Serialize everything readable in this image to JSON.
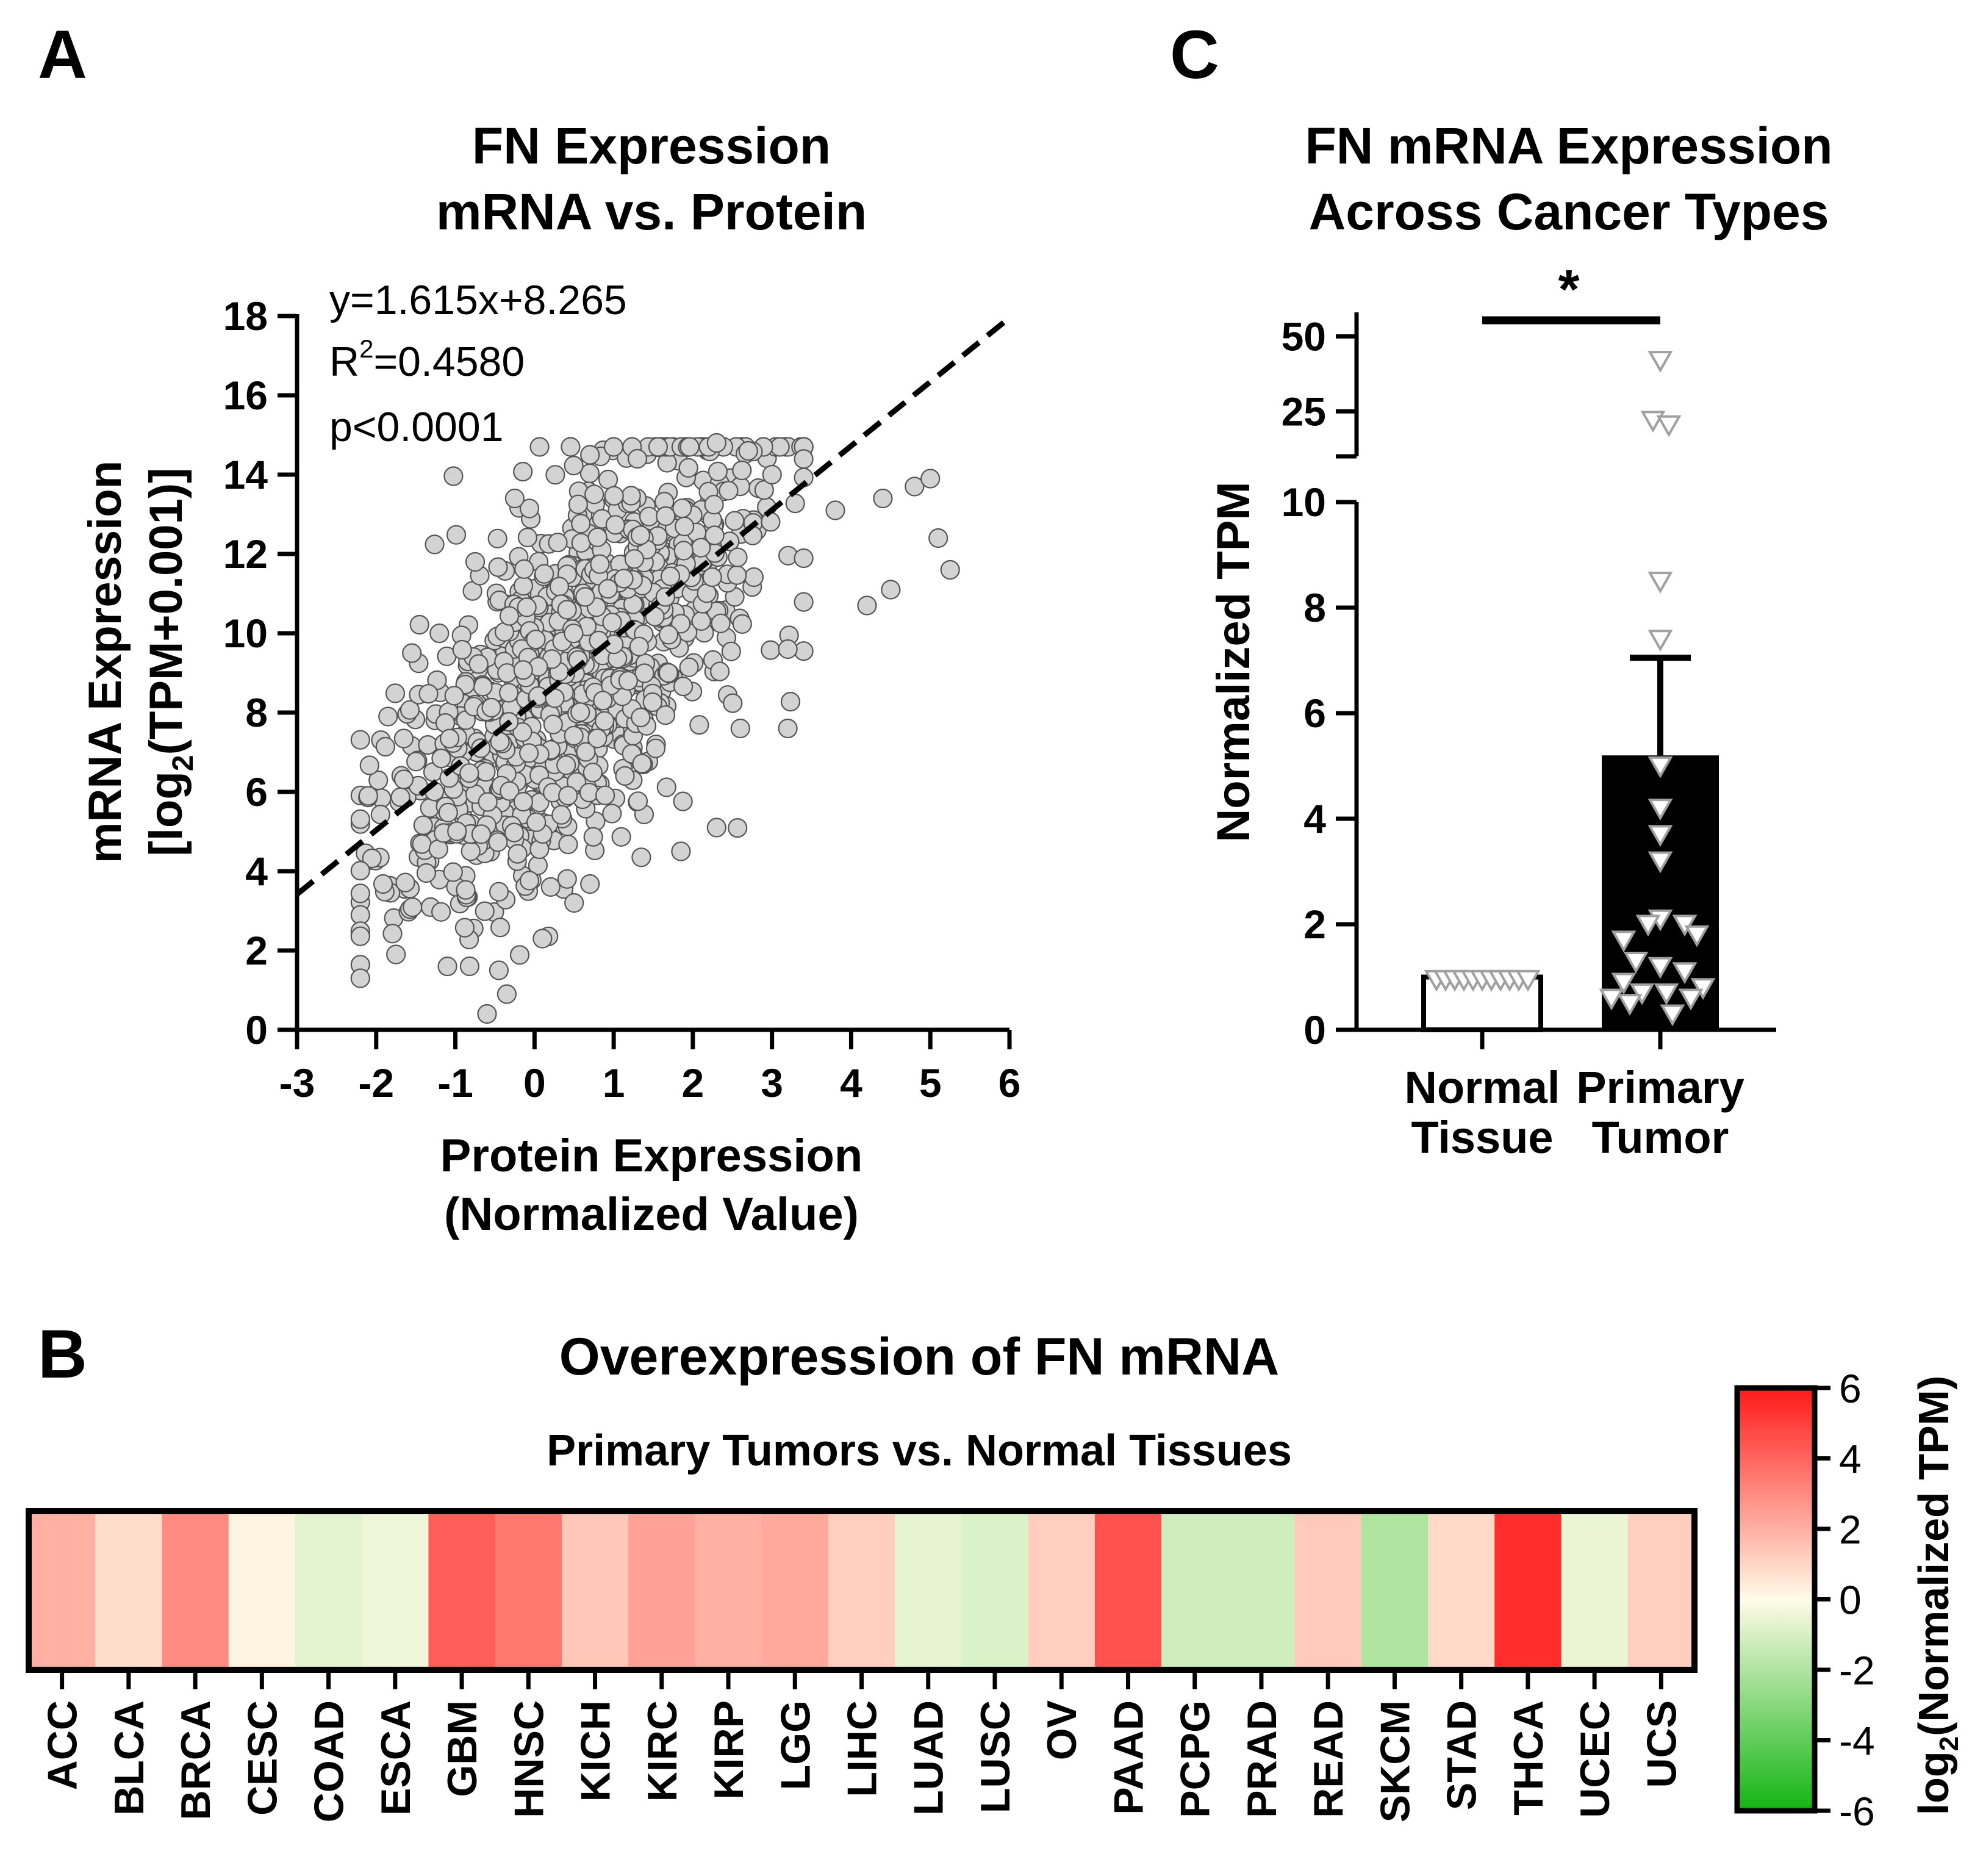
{
  "panels": {
    "a": {
      "letter": "A",
      "title_line1": "FN Expression",
      "title_line2": "mRNA vs. Protein",
      "eq_line": "y=1.615x+8.265",
      "r2_prefix": "R",
      "r2_sup": "2",
      "r2_value": "=0.4580",
      "p_line": "p<0.0001",
      "ylabel_line1": "mRNA Expression",
      "ylabel_line2_a": "[log",
      "ylabel_line2_sub": "2",
      "ylabel_line2_b": "(TPM+0.001)]",
      "xlabel_line1": "Protein Expression",
      "xlabel_line2": "(Normalized Value)"
    },
    "b": {
      "letter": "B",
      "title": "Overexpression of FN mRNA",
      "subtitle": "Primary Tumors vs. Normal Tissues",
      "colorbar_label_a": "log",
      "colorbar_label_sub": "2",
      "colorbar_label_b": "(Normalized TPM)"
    },
    "c": {
      "letter": "C",
      "title_line1": "FN mRNA Expression",
      "title_line2": "Across Cancer Types",
      "ylabel": "Normalized TPM",
      "significance": "*",
      "cat1_line1": "Normal",
      "cat1_line2": "Tissue",
      "cat2_line1": "Primary",
      "cat2_line2": "Tumor"
    }
  },
  "colors": {
    "point_fill": "#d3d3d3",
    "point_stroke": "#555555",
    "tumor_bar": "#000000",
    "triangle_outline": "#a0a0a0",
    "heat_red": "#ff1a1a",
    "heat_green": "#12b512"
  },
  "chart_data": [
    {
      "id": "A",
      "type": "scatter",
      "title": "FN Expression mRNA vs. Protein",
      "xlabel": "Protein Expression (Normalized Value)",
      "ylabel": "mRNA Expression [log2(TPM+0.001)]",
      "xlim": [
        -3,
        6
      ],
      "ylim": [
        0,
        18
      ],
      "xticks": [
        -3,
        -2,
        -1,
        0,
        1,
        2,
        3,
        4,
        5,
        6
      ],
      "yticks": [
        0,
        2,
        4,
        6,
        8,
        10,
        12,
        14,
        16,
        18
      ],
      "regression": {
        "slope": 1.615,
        "intercept": 8.265,
        "r2": 0.458,
        "p": "<0.0001"
      },
      "n_points_approx": 1100,
      "point_cloud_note": "dense cloud, x approx -2.2 to 5.3, y approx 0.4 to 14.8",
      "sample_points": [
        [
          -0.6,
          0.4
        ],
        [
          -0.35,
          0.9
        ],
        [
          -0.45,
          1.5
        ],
        [
          -1.1,
          1.6
        ],
        [
          -1.75,
          1.9
        ],
        [
          -2.1,
          5.9
        ],
        [
          -1.85,
          7.9
        ],
        [
          -1.55,
          9.5
        ],
        [
          -0.75,
          11.8
        ],
        [
          -0.25,
          13.4
        ],
        [
          0.7,
          14.5
        ],
        [
          1.3,
          14.4
        ],
        [
          2.3,
          14.8
        ],
        [
          2.7,
          14.6
        ],
        [
          3.0,
          14.0
        ],
        [
          3.8,
          13.1
        ],
        [
          4.4,
          13.4
        ],
        [
          4.8,
          13.7
        ],
        [
          5.0,
          13.9
        ],
        [
          5.25,
          11.6
        ],
        [
          5.1,
          12.4
        ],
        [
          4.5,
          11.1
        ],
        [
          4.2,
          10.7
        ],
        [
          3.2,
          7.6
        ],
        [
          2.6,
          7.6
        ],
        [
          2.3,
          5.1
        ],
        [
          1.85,
          4.5
        ],
        [
          0.1,
          2.3
        ],
        [
          0.5,
          3.2
        ],
        [
          3.2,
          9.6
        ]
      ]
    },
    {
      "id": "B",
      "type": "heatmap",
      "title": "Overexpression of FN mRNA",
      "subtitle": "Primary Tumors vs. Normal Tissues",
      "colorbar_label": "log2(Normalized TPM)",
      "colorbar_range": [
        -6,
        6
      ],
      "colorbar_ticks": [
        6,
        4,
        2,
        0,
        -2,
        -4,
        -6
      ],
      "categories": [
        "ACC",
        "BLCA",
        "BRCA",
        "CESC",
        "COAD",
        "ESCA",
        "GBM",
        "HNSC",
        "KICH",
        "KIRC",
        "KIRP",
        "LGG",
        "LIHC",
        "LUAD",
        "LUSC",
        "OV",
        "PAAD",
        "PCPG",
        "PRAD",
        "READ",
        "SKCM",
        "STAD",
        "THCA",
        "UCEC",
        "UCS"
      ],
      "values": [
        2.0,
        0.8,
        3.0,
        0.2,
        -0.7,
        -0.4,
        4.2,
        3.5,
        1.4,
        2.4,
        2.0,
        2.2,
        1.2,
        -0.6,
        -0.9,
        1.2,
        4.5,
        -1.2,
        -1.2,
        1.3,
        -2.0,
        0.9,
        5.5,
        -0.5,
        1.2
      ]
    },
    {
      "id": "C",
      "type": "bar",
      "title": "FN mRNA Expression Across Cancer Types",
      "ylabel": "Normalized TPM",
      "categories": [
        "Normal Tissue",
        "Primary Tumor"
      ],
      "values": [
        1.0,
        5.2
      ],
      "error_upper": [
        0,
        7.05
      ],
      "y_axis_segments": {
        "lower": [
          0,
          10
        ],
        "upper": [
          10,
          58
        ]
      },
      "yticks_lower": [
        0,
        2,
        4,
        6,
        8,
        10
      ],
      "yticks_upper": [
        25,
        50
      ],
      "significance": "*",
      "points": {
        "Normal Tissue": [
          1.0,
          1.0,
          1.0,
          1.0,
          1.0,
          1.0,
          1.0,
          1.0,
          1.0,
          1.0,
          1.0
        ],
        "Primary Tumor": [
          42.0,
          22.0,
          20.5,
          8.5,
          7.4,
          5.0,
          4.2,
          3.7,
          3.2,
          2.1,
          2.0,
          2.0,
          1.8,
          1.7,
          1.3,
          1.2,
          1.1,
          0.9,
          0.8,
          0.7,
          0.7,
          0.6,
          0.6,
          0.5,
          0.3
        ]
      }
    }
  ]
}
